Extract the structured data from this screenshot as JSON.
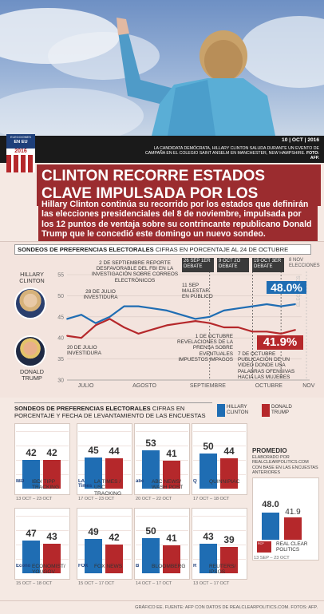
{
  "header": {
    "date": "10 | OCT | 2016",
    "caption": "LA CANDIDATA DEMÓCRATA, HILLARY CLINTON SALUDA DURANTE UN EVENTO DE CAMPAÑA EN EL COLEGIO SAINT ANSELM EN MANCHESTER, NEW HAMPSHIRE.",
    "caption_credit": "FOTO: AFP.",
    "badge_line1": "ELECCIONES",
    "badge_line2": "EN EU",
    "badge_year": "2016"
  },
  "headline": {
    "title": "CLINTON RECORRE ESTADOS CLAVE IMPULSADA POR LOS SONDEOS",
    "lead": "Hillary Clinton continúa su recorrido por los estados que definirán las elecciones presidenciales del 8 de noviembre, impulsada por los 12 puntos de ventaja sobre su contrincante republicano Donald Trump que le concedió este domingo un nuevo sondeo."
  },
  "trend": {
    "section_title": "SONDEOS DE PREFERENCIAS ELECTORALES",
    "section_subtitle": "CIFRAS EN PORCENTAJE AL 24 DE OCTUBRE",
    "clinton_label": "HILLARY CLINTON",
    "trump_label": "DONALD TRUMP",
    "clinton_final": "48.0%",
    "trump_final": "41.9%",
    "yticks": [
      "55",
      "50",
      "45",
      "40",
      "35",
      "30"
    ],
    "months": [
      "JULIO",
      "AGOSTO",
      "SEPTIEMBRE",
      "OCTUBRE",
      "NOV"
    ],
    "debates": [
      "26 SEP 1ER DEBATE",
      "9 OCT 2O DEBATE",
      "19 OCT 3ER DEBATE"
    ],
    "election_label": "8 NOV ELECCIONES",
    "election_vertical": "ELECCIONES",
    "annotations": {
      "a1": "2 DE SEPTIEMBRE REPORTE DESFAVORABLE DEL FBI EN LA INVESTIGACIÓN SOBRE CORREOS ELECTRÓNICOS",
      "a2": "28 DE JULIO INVESTIDURA",
      "a3": "11 SEP MALESTAR EN PÚBLICO",
      "a4": "20 DE JULIO INVESTIDURA",
      "a5": "1 DE OCTUBRE REVELACIONES DE LA PRENSA SOBRE EVENTUALES IMPUESTOS IMPAGOS",
      "a6": "7 DE OCTUBRE PUBLICACIÓN DE UN VIDEO DONDE USA PALABRAS OFENSIVAS HACIA LAS MUJERES"
    }
  },
  "polls": {
    "section_title": "SONDEOS DE PREFERENCIAS ELECTORALES",
    "section_subtitle": "CIFRAS EN PORCENTAJE Y FECHA DE LEVANTAMIENTO DE LAS ENCUESTAS",
    "legend_clinton": "HILLARY CLINTON",
    "legend_trump": "DONALD TRUMP",
    "items": [
      {
        "name": "IBD/ TIPP TRACKING",
        "logo": "IBD",
        "date": "13 OCT – 23 OCT",
        "clinton": 42,
        "trump": 42,
        "clinton_label": "42",
        "trump_label": "42"
      },
      {
        "name": "LA TIMES / USC TRACKING",
        "logo": "LA Times",
        "date": "17 OCT – 23 OCT",
        "clinton": 45,
        "trump": 44,
        "clinton_label": "45",
        "trump_label": "44"
      },
      {
        "name": "ABC NEWS/ WASH POST",
        "logo": "abc",
        "date": "20 OCT – 22 OCT",
        "clinton": 53,
        "trump": 41,
        "clinton_label": "53",
        "trump_label": "41"
      },
      {
        "name": "QUINNIPIAC",
        "logo": "Q",
        "date": "17 OCT – 18 OCT",
        "clinton": 50,
        "trump": 44,
        "clinton_label": "50",
        "trump_label": "44"
      },
      {
        "name": "ECONOMIST/ YOUGOV",
        "logo": "Economist",
        "date": "15 OCT – 18 OCT",
        "clinton": 47,
        "trump": 43,
        "clinton_label": "47",
        "trump_label": "43"
      },
      {
        "name": "FOX NEWS",
        "logo": "FOX",
        "date": "15 OCT – 17 OCT",
        "clinton": 49,
        "trump": 42,
        "clinton_label": "49",
        "trump_label": "42"
      },
      {
        "name": "BLOOMBERG",
        "logo": "B",
        "date": "14 OCT – 17 OCT",
        "clinton": 50,
        "trump": 41,
        "clinton_label": "50",
        "trump_label": "41"
      },
      {
        "name": "REUTERS/ IPSOS",
        "logo": "R",
        "date": "13 OCT – 17 OCT",
        "clinton": 43,
        "trump": 39,
        "clinton_label": "43",
        "trump_label": "39"
      }
    ],
    "average": {
      "title": "PROMEDIO",
      "desc": "ELABORADO POR REALCLEARPOLITICS.COM CON BASE EN LAS ENCUESTAS ANTERIORES",
      "name": "REAL CLEAR POLITICS",
      "date": "13 SEP – 23 OCT",
      "clinton": 48.0,
      "trump": 41.9,
      "clinton_label": "48.0",
      "trump_label": "41.9"
    }
  },
  "footer": {
    "credit": "GRÁFICO EE. FUENTE: AFP CON DATOS DE REALCLEARPOLITICS.COM. FOTOS: AFP."
  },
  "colors": {
    "clinton": "#1f6db3",
    "trump": "#b5282b",
    "accent": "#9b2c2f"
  },
  "chart_data": [
    {
      "type": "line",
      "title": "SONDEOS DE PREFERENCIAS ELECTORALES",
      "subtitle": "CIFRAS EN PORCENTAJE AL 24 DE OCTUBRE",
      "ylim": [
        30,
        55
      ],
      "x": [
        "JUL-01",
        "JUL-10",
        "JUL-20",
        "JUL-28",
        "AUG-05",
        "AUG-15",
        "AUG-25",
        "SEP-02",
        "SEP-11",
        "SEP-20",
        "SEP-26",
        "OCT-01",
        "OCT-07",
        "OCT-09",
        "OCT-15",
        "OCT-19",
        "OCT-24"
      ],
      "series": [
        {
          "name": "HILLARY CLINTON",
          "values": [
            44.5,
            45.5,
            43.5,
            45.0,
            47.5,
            47.5,
            47.0,
            46.5,
            45.5,
            44.5,
            45.0,
            46.5,
            47.0,
            47.5,
            48.0,
            47.5,
            48.0
          ]
        },
        {
          "name": "DONALD TRUMP",
          "values": [
            40.5,
            40.0,
            43.0,
            44.5,
            42.5,
            41.0,
            42.0,
            43.0,
            43.5,
            44.0,
            43.5,
            42.5,
            42.5,
            41.5,
            41.5,
            41.0,
            41.9
          ]
        }
      ]
    },
    {
      "type": "bar",
      "title": "SONDEOS DE PREFERENCIAS ELECTORALES",
      "categories": [
        "IBD/ TIPP TRACKING",
        "LA TIMES / USC TRACKING",
        "ABC NEWS/ WASH POST",
        "QUINNIPIAC",
        "ECONOMIST/ YOUGOV",
        "FOX NEWS",
        "BLOOMBERG",
        "REUTERS/ IPSOS",
        "REAL CLEAR POLITICS"
      ],
      "series": [
        {
          "name": "HILLARY CLINTON",
          "values": [
            42,
            45,
            53,
            50,
            47,
            49,
            50,
            43,
            48.0
          ]
        },
        {
          "name": "DONALD TRUMP",
          "values": [
            42,
            44,
            41,
            44,
            43,
            42,
            41,
            39,
            41.9
          ]
        }
      ],
      "ylim": [
        0,
        60
      ]
    }
  ]
}
